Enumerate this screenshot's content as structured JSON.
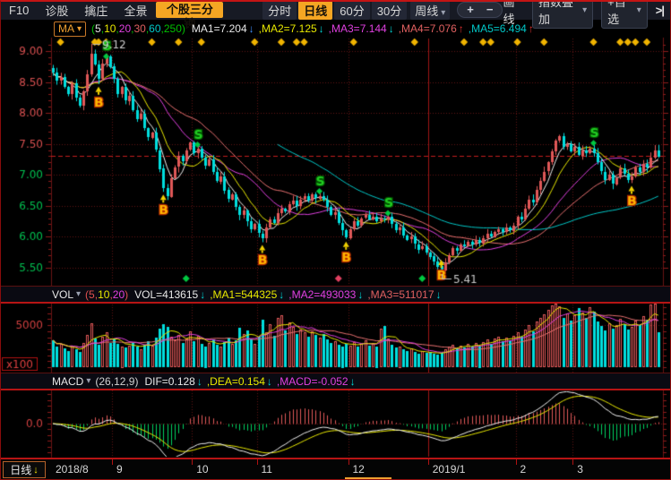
{
  "toolbar": {
    "menu_items": [
      "F10",
      "诊股",
      "擒庄",
      "全景"
    ],
    "promo_button": "个股三分钟",
    "period_tabs": [
      {
        "label": "分时",
        "key": "minute",
        "active": false
      },
      {
        "label": "日线",
        "key": "daily",
        "active": true
      },
      {
        "label": "60分",
        "key": "60min",
        "active": false
      },
      {
        "label": "30分",
        "key": "30min",
        "active": false
      }
    ],
    "week_tab": "周线",
    "zoom_in": "+",
    "zoom_out": "−",
    "draw_line": "画线",
    "index_overlay": "指数叠加",
    "add_watchlist": "+自选",
    "collapse": ">|"
  },
  "ma_header": {
    "label": "MA",
    "paren_color": "#00c000",
    "params": [
      {
        "text": "5",
        "color": "#e8e8e8"
      },
      {
        "text": "10",
        "color": "#e8e800"
      },
      {
        "text": "20",
        "color": "#e040e0"
      },
      {
        "text": "30",
        "color": "#e06060"
      },
      {
        "text": "60",
        "color": "#00c8c8"
      },
      {
        "text": "250",
        "color": "#00c000"
      }
    ],
    "values": [
      {
        "text": "MA1=7.204",
        "color": "#e8e8e8",
        "arrow": "↓",
        "arrow_color": "#4090ff"
      },
      {
        "text": ",MA2=7.125",
        "color": "#e8e800",
        "arrow": "↓",
        "arrow_color": "#00d8d8"
      },
      {
        "text": ",MA3=7.144",
        "color": "#e040e0",
        "arrow": "↓",
        "arrow_color": "#00d8d8"
      },
      {
        "text": ",MA4=7.076",
        "color": "#e06060",
        "arrow": "↑",
        "arrow_color": "#e03030"
      },
      {
        "text": ",MA5=6.494",
        "color": "#00c8c8",
        "arrow": "↑",
        "arrow_color": "#e03030"
      }
    ],
    "icons": [
      {
        "glyph": "?",
        "name": "help-icon"
      }
    ]
  },
  "vol_header": {
    "label": "VOL",
    "paren_color": "#e05050",
    "params": [
      {
        "text": "5",
        "color": "#e05050"
      },
      {
        "text": "10",
        "color": "#e8e800"
      },
      {
        "text": "20",
        "color": "#e040e0"
      }
    ],
    "values": [
      {
        "text": "VOL=413615",
        "color": "#e8e8e8",
        "arrow": "↓",
        "arrow_color": "#00d8d8"
      },
      {
        "text": ",MA1=544325",
        "color": "#e8e800",
        "arrow": "↓",
        "arrow_color": "#00d8d8"
      },
      {
        "text": ",MA2=493033",
        "color": "#e040e0",
        "arrow": "↓",
        "arrow_color": "#00d8d8"
      },
      {
        "text": ",MA3=511017",
        "color": "#e06060",
        "arrow": "↓",
        "arrow_color": "#00d8d8"
      }
    ],
    "icons": [
      {
        "glyph": "?",
        "name": "help-icon"
      },
      {
        "glyph": "□",
        "name": "maximize-icon"
      },
      {
        "glyph": "✕",
        "name": "close-icon"
      }
    ]
  },
  "macd_header": {
    "label": "MACD",
    "paren_color": "#d0d0d0",
    "params": [
      {
        "text": "26",
        "color": "#d0d0d0"
      },
      {
        "text": "12",
        "color": "#d0d0d0"
      },
      {
        "text": "9",
        "color": "#d0d0d0"
      }
    ],
    "values": [
      {
        "text": "DIF=0.128",
        "color": "#e8e8e8",
        "arrow": "↓",
        "arrow_color": "#00d8d8"
      },
      {
        "text": ",DEA=0.154",
        "color": "#e8e800",
        "arrow": "↓",
        "arrow_color": "#00d8d8"
      },
      {
        "text": ",MACD=-0.052",
        "color": "#e040e0",
        "arrow": "↓",
        "arrow_color": "#00d8d8"
      }
    ],
    "icons": [
      {
        "glyph": "?",
        "name": "help-icon"
      },
      {
        "glyph": "□",
        "name": "maximize-icon"
      },
      {
        "glyph": "✕",
        "name": "close-icon"
      }
    ]
  },
  "bottom_bar": {
    "period": "日线",
    "arrow": "↓"
  },
  "chart_data": {
    "type": "candlestick+volume+macd",
    "price_pane": {
      "ylim": [
        5.35,
        9.22
      ],
      "yticks": [
        {
          "v": 9.0,
          "label": "9.00",
          "color": "#d95050"
        },
        {
          "v": 8.5,
          "label": "8.50",
          "color": "#d95050"
        },
        {
          "v": 8.0,
          "label": "8.00",
          "color": "#d95050"
        },
        {
          "v": 7.5,
          "label": "7.50",
          "color": "#d95050"
        },
        {
          "v": 7.0,
          "label": "7.00",
          "color": "#00c050"
        },
        {
          "v": 6.5,
          "label": "6.50",
          "color": "#00c050"
        },
        {
          "v": 6.0,
          "label": "6.00",
          "color": "#00c050"
        },
        {
          "v": 5.5,
          "label": "5.50",
          "color": "#00c050"
        }
      ],
      "period_high": "9.12",
      "period_low": "5.41",
      "ma_periods": [
        5,
        10,
        20,
        30,
        60,
        250
      ],
      "ma_displayed": {
        "MA1": 7.204,
        "MA2": 7.125,
        "MA3": 7.144,
        "MA4": 7.076,
        "MA5": 6.494
      },
      "ma_colors": [
        "#f0f0f0",
        "#e8e800",
        "#e040e0",
        "#e87070",
        "#00c8c8"
      ]
    },
    "volume_pane": {
      "ytick_label": "5000",
      "ytick_value": 5000,
      "unit_label": "x100",
      "vol_displayed": 413615,
      "ma_displayed": {
        "MA1": 544325,
        "MA2": 493033,
        "MA3": 511017
      },
      "ma_colors": [
        "#e8e800",
        "#e040e0",
        "#e87070"
      ]
    },
    "macd_pane": {
      "params": [
        26,
        12,
        9
      ],
      "displayed": {
        "DIF": 0.128,
        "DEA": 0.154,
        "MACD": -0.052
      },
      "zero_label": "0.0",
      "dif_color": "#f0f0f0",
      "dea_color": "#e8e800"
    },
    "months": [
      {
        "label": "2018/8",
        "i": 0
      },
      {
        "label": "9",
        "i": 16
      },
      {
        "label": "10",
        "i": 37
      },
      {
        "label": "11",
        "i": 54
      },
      {
        "label": "12",
        "i": 78
      },
      {
        "label": "2019/1",
        "i": 99
      },
      {
        "label": "2",
        "i": 122
      },
      {
        "label": "3",
        "i": 137
      }
    ],
    "closes": [
      8.65,
      8.52,
      8.58,
      8.42,
      8.3,
      8.48,
      8.25,
      8.12,
      8.35,
      8.62,
      8.95,
      8.78,
      8.55,
      8.8,
      8.92,
      8.75,
      8.55,
      8.3,
      8.42,
      8.2,
      8.28,
      8.05,
      7.9,
      7.98,
      7.75,
      7.6,
      7.68,
      7.4,
      7.1,
      6.78,
      6.65,
      6.95,
      7.12,
      7.3,
      7.22,
      7.4,
      7.52,
      7.35,
      7.42,
      7.28,
      7.15,
      7.25,
      7.05,
      6.9,
      6.98,
      6.75,
      6.6,
      6.68,
      6.48,
      6.35,
      6.42,
      6.25,
      6.12,
      6.2,
      6.05,
      5.98,
      6.15,
      6.28,
      6.22,
      6.38,
      6.45,
      6.4,
      6.52,
      6.58,
      6.5,
      6.6,
      6.65,
      6.58,
      6.68,
      6.62,
      6.66,
      6.6,
      6.48,
      6.35,
      6.4,
      6.22,
      6.1,
      5.98,
      6.12,
      6.25,
      6.18,
      6.3,
      6.35,
      6.28,
      6.32,
      6.25,
      6.3,
      6.28,
      6.32,
      6.2,
      6.1,
      6.15,
      6.02,
      5.95,
      6.0,
      5.88,
      5.8,
      5.85,
      5.75,
      5.68,
      5.6,
      5.52,
      5.45,
      5.58,
      5.7,
      5.82,
      5.78,
      5.88,
      5.85,
      5.92,
      5.88,
      5.95,
      5.9,
      5.98,
      6.05,
      6.0,
      6.08,
      6.12,
      6.08,
      6.15,
      6.1,
      6.18,
      6.32,
      6.28,
      6.45,
      6.6,
      6.55,
      6.75,
      6.9,
      7.05,
      7.2,
      7.38,
      7.55,
      7.62,
      7.45,
      7.5,
      7.38,
      7.45,
      7.32,
      7.4,
      7.35,
      7.42,
      7.35,
      7.2,
      7.05,
      6.92,
      7.0,
      6.85,
      6.95,
      7.1,
      7.02,
      6.92,
      6.98,
      7.12,
      7.05,
      7.18,
      7.12,
      7.28,
      7.4,
      7.3
    ],
    "volumes": [
      3200,
      2400,
      2800,
      2200,
      1900,
      2600,
      2100,
      1800,
      2900,
      3800,
      5200,
      3400,
      2700,
      3600,
      4100,
      2900,
      3400,
      2800,
      2500,
      2300,
      2600,
      2900,
      2400,
      2100,
      2700,
      3100,
      2600,
      3500,
      4600,
      5100,
      4800,
      3600,
      3200,
      3800,
      2900,
      3400,
      4300,
      3100,
      3700,
      2800,
      2500,
      2900,
      3300,
      2700,
      2400,
      3000,
      3500,
      2800,
      3200,
      4700,
      3900,
      4400,
      3300,
      2800,
      3600,
      5600,
      4200,
      5100,
      3700,
      5800,
      6200,
      4400,
      5300,
      4800,
      3900,
      4500,
      4100,
      3600,
      4300,
      3800,
      3500,
      3900,
      3300,
      2900,
      3100,
      2700,
      2500,
      2800,
      2600,
      3000,
      2400,
      2800,
      3200,
      2600,
      2900,
      2500,
      4600,
      4900,
      3400,
      2700,
      2300,
      2500,
      2100,
      1900,
      2200,
      1800,
      1600,
      1900,
      1700,
      1800,
      1600,
      1500,
      1700,
      2100,
      2400,
      2700,
      2200,
      2600,
      2300,
      2800,
      2400,
      2900,
      2500,
      3000,
      3300,
      2800,
      3400,
      3600,
      3100,
      3500,
      3200,
      3700,
      4100,
      3600,
      4500,
      5000,
      4300,
      5400,
      5800,
      6300,
      6800,
      7300,
      7800,
      7200,
      5900,
      6400,
      5500,
      6200,
      7000,
      6500,
      5800,
      7100,
      6600,
      5400,
      4900,
      4400,
      5200,
      4600,
      5000,
      5700,
      5100,
      4500,
      4800,
      5500,
      5000,
      6100,
      5600,
      7400,
      7600,
      4136
    ],
    "signals": [
      {
        "i": 12,
        "t": "B"
      },
      {
        "i": 14,
        "t": "S"
      },
      {
        "i": 29,
        "t": "B"
      },
      {
        "i": 38,
        "t": "S"
      },
      {
        "i": 55,
        "t": "B"
      },
      {
        "i": 70,
        "t": "S"
      },
      {
        "i": 77,
        "t": "B"
      },
      {
        "i": 88,
        "t": "S"
      },
      {
        "i": 102,
        "t": "B"
      },
      {
        "i": 142,
        "t": "S"
      },
      {
        "i": 152,
        "t": "B"
      }
    ],
    "top_diamonds": [
      2,
      11,
      12,
      14,
      26,
      33,
      39,
      53,
      60,
      64,
      66,
      79,
      95,
      108,
      113,
      115,
      122,
      129,
      142,
      149,
      151,
      153,
      156
    ],
    "bottom_diamonds": [
      {
        "i": 35,
        "c": "#00c840"
      },
      {
        "i": 75,
        "c": "#e04060"
      },
      {
        "i": 97,
        "c": "#00c840"
      }
    ],
    "up_color": "#e05858",
    "down_color": "#00dede"
  }
}
